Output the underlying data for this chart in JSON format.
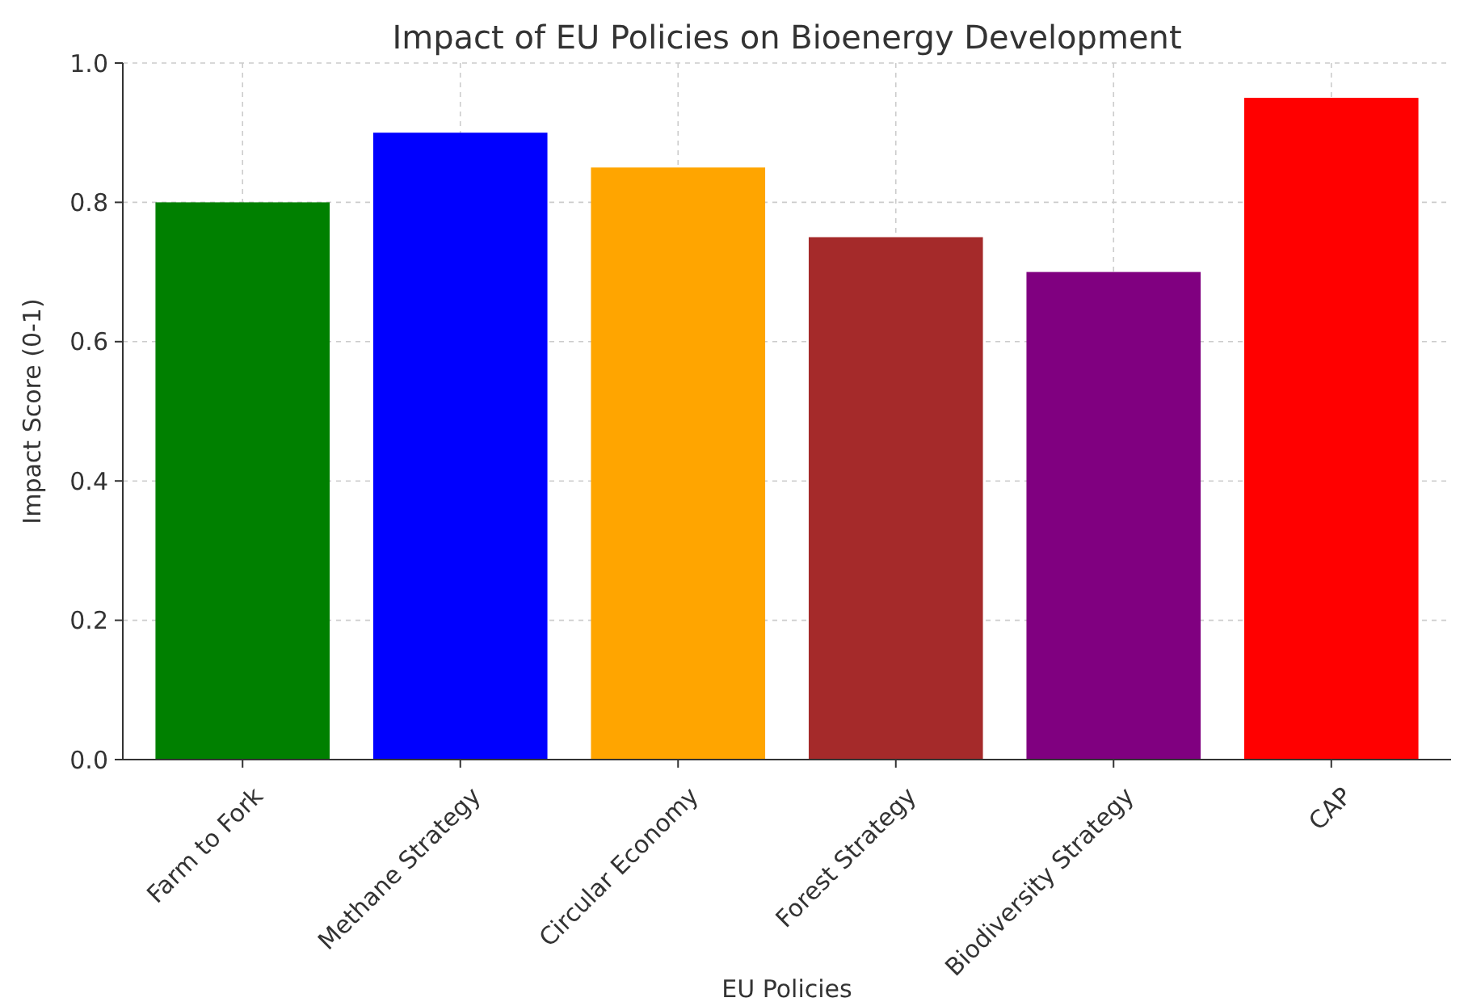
{
  "chart_data": {
    "type": "bar",
    "title": "Impact of EU Policies on Bioenergy Development",
    "xlabel": "EU Policies",
    "ylabel": "Impact Score (0-1)",
    "categories": [
      "Farm to Fork",
      "Methane Strategy",
      "Circular Economy",
      "Forest Strategy",
      "Biodiversity Strategy",
      "CAP"
    ],
    "values": [
      0.8,
      0.9,
      0.85,
      0.75,
      0.7,
      0.95
    ],
    "colors": [
      "#008000",
      "#0000ff",
      "#ffa500",
      "#a52a2a",
      "#800080",
      "#ff0000"
    ],
    "ylim": [
      0,
      1
    ],
    "yticks": [
      {
        "value": 0,
        "label": "0.0"
      },
      {
        "value": 0.2,
        "label": "0.2"
      },
      {
        "value": 0.4,
        "label": "0.4"
      },
      {
        "value": 0.6,
        "label": "0.6"
      },
      {
        "value": 0.8,
        "label": "0.8"
      },
      {
        "value": 1,
        "label": "1.0"
      }
    ],
    "grid": true
  }
}
